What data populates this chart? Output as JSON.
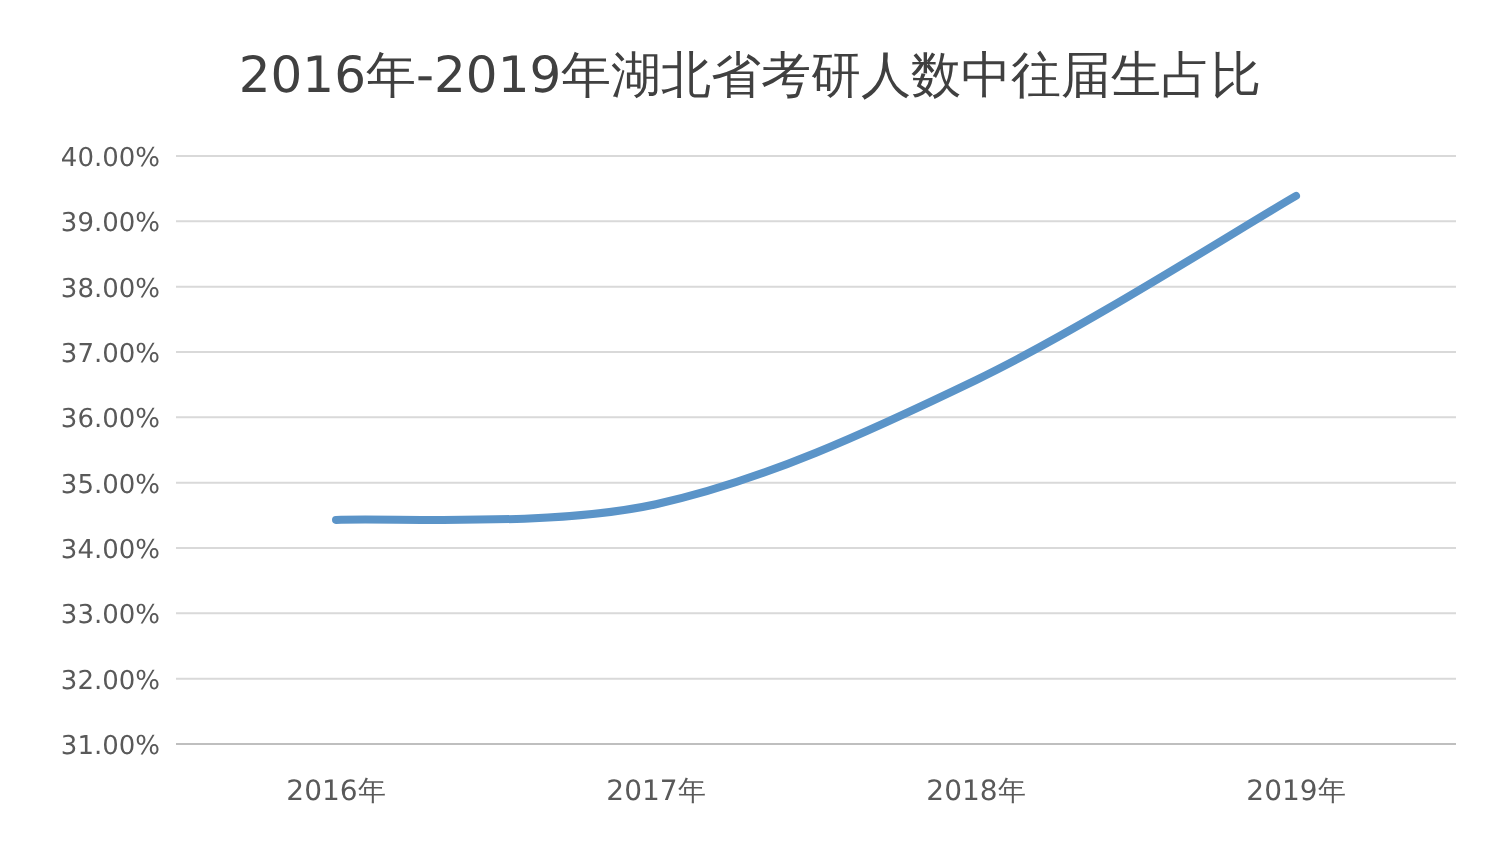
{
  "chart_data": {
    "type": "line",
    "title": "2016年-2019年湖北省考研人数中往届生占比",
    "categories": [
      "2016年",
      "2017年",
      "2018年",
      "2019年"
    ],
    "series": [
      {
        "color": "#5b94c8",
        "values": [
          34.43,
          34.67,
          36.57,
          39.39
        ]
      }
    ],
    "ylim": [
      31,
      40
    ],
    "yticks": [
      {
        "value": 31,
        "label": "31.00%"
      },
      {
        "value": 32,
        "label": "32.00%"
      },
      {
        "value": 33,
        "label": "33.00%"
      },
      {
        "value": 34,
        "label": "34.00%"
      },
      {
        "value": 35,
        "label": "35.00%"
      },
      {
        "value": 36,
        "label": "36.00%"
      },
      {
        "value": 37,
        "label": "37.00%"
      },
      {
        "value": 38,
        "label": "38.00%"
      },
      {
        "value": 39,
        "label": "39.00%"
      },
      {
        "value": 40,
        "label": "40.00%"
      }
    ],
    "grid": "y"
  }
}
